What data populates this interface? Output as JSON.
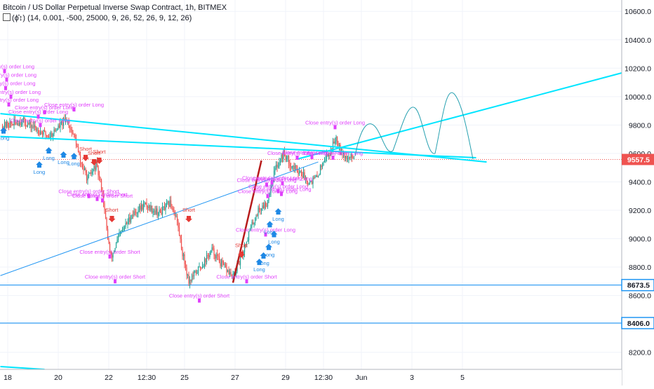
{
  "header": {
    "title": "Bitcoin / US Dollar Perpetual Inverse Swap Contract, 1h, BITMEX",
    "indicator_symbol": "(ϕ̂↕)",
    "indicator_params": "(14, 0.001, -500, 25000, 9, 26, 52, 26, 9, 12, 26)"
  },
  "chart_data": {
    "type": "candlestick",
    "title": "Bitcoin / US Dollar Perpetual Inverse Swap Contract, 1h, BITMEX",
    "y_axis": {
      "ylim": [
        8080,
        10680
      ],
      "ticks": [
        8200,
        8400,
        8600,
        8800,
        9000,
        9200,
        9400,
        9600,
        9800,
        10000,
        10200,
        10400,
        10600
      ],
      "tick_labels": [
        "8200.0",
        "8400.0",
        "8600.0",
        "8800.0",
        "9000.0",
        "9200.0",
        "9400.0",
        "9600.0",
        "9800.0",
        "10000.0",
        "10200.0",
        "10400.0",
        "10600.0"
      ],
      "position": "right"
    },
    "x_axis": {
      "xlim": [
        0,
        432
      ],
      "ticks": [
        0,
        48,
        72,
        96,
        120,
        144,
        168,
        192,
        216,
        240,
        264,
        288,
        312,
        336,
        360,
        384
      ],
      "tick_labels": [
        "18",
        "20",
        "22",
        "12:30",
        "25",
        "27",
        "29",
        "12:30",
        "Jun",
        "3",
        "5"
      ],
      "tick_positions_hours": [
        5,
        53,
        101,
        137,
        173,
        221,
        269,
        305,
        341,
        389,
        437
      ]
    },
    "current_price": {
      "value": 9557.5,
      "label": "9557.5",
      "color": "#ef5350"
    },
    "horizontal_levels": [
      {
        "value": 8673.5,
        "label": "8673.5",
        "color": "#2196f3"
      },
      {
        "value": 8406.0,
        "label": "8406.0",
        "color": "#2196f3"
      }
    ],
    "colors": {
      "up": "#26a69a",
      "down": "#ef5350",
      "trendline": "#00e5ff",
      "trendline_thin": "#2196f3",
      "signal": "#e040fb",
      "sell_line": "#b71c1c"
    },
    "key_points": [
      {
        "x": 0,
        "y": 9790
      },
      {
        "x": 20,
        "y": 9830
      },
      {
        "x": 45,
        "y": 9720
      },
      {
        "x": 62,
        "y": 9840
      },
      {
        "x": 70,
        "y": 9700
      },
      {
        "x": 75,
        "y": 9540
      },
      {
        "x": 82,
        "y": 9420
      },
      {
        "x": 90,
        "y": 9520
      },
      {
        "x": 96,
        "y": 9330
      },
      {
        "x": 100,
        "y": 9060
      },
      {
        "x": 104,
        "y": 8860
      },
      {
        "x": 112,
        "y": 9020
      },
      {
        "x": 124,
        "y": 9170
      },
      {
        "x": 136,
        "y": 9240
      },
      {
        "x": 150,
        "y": 9180
      },
      {
        "x": 160,
        "y": 9250
      },
      {
        "x": 166,
        "y": 9160
      },
      {
        "x": 172,
        "y": 8900
      },
      {
        "x": 178,
        "y": 8700
      },
      {
        "x": 190,
        "y": 8810
      },
      {
        "x": 200,
        "y": 8920
      },
      {
        "x": 210,
        "y": 8810
      },
      {
        "x": 220,
        "y": 8730
      },
      {
        "x": 228,
        "y": 8870
      },
      {
        "x": 236,
        "y": 9060
      },
      {
        "x": 244,
        "y": 9200
      },
      {
        "x": 252,
        "y": 9250
      },
      {
        "x": 260,
        "y": 9490
      },
      {
        "x": 268,
        "y": 9600
      },
      {
        "x": 276,
        "y": 9510
      },
      {
        "x": 284,
        "y": 9470
      },
      {
        "x": 292,
        "y": 9400
      },
      {
        "x": 300,
        "y": 9430
      },
      {
        "x": 306,
        "y": 9560
      },
      {
        "x": 312,
        "y": 9600
      },
      {
        "x": 318,
        "y": 9720
      },
      {
        "x": 322,
        "y": 9640
      },
      {
        "x": 328,
        "y": 9560
      },
      {
        "x": 334,
        "y": 9580
      }
    ],
    "signals": [
      {
        "text": "Close entry(s) order Long",
        "type": "close-long",
        "hour": 2,
        "price": 10180
      },
      {
        "text": "Close entry(s) order Long",
        "type": "close-long",
        "hour": 4,
        "price": 10120
      },
      {
        "text": "Close entry(s) order Long",
        "type": "close-long",
        "hour": 3,
        "price": 10060
      },
      {
        "text": "Close entry(s) order Long",
        "type": "close-long",
        "hour": 8,
        "price": 10000
      },
      {
        "text": "Close entry(s) order Long",
        "type": "close-long",
        "hour": 6,
        "price": 9945
      },
      {
        "text": "Close entry(s) order Long",
        "type": "close-long",
        "hour": 40,
        "price": 9890
      },
      {
        "text": "Close entry(s) order Long",
        "type": "close-long",
        "hour": 34,
        "price": 9860
      },
      {
        "text": "Close entry(s) order Long",
        "type": "close-long",
        "hour": 68,
        "price": 9910
      },
      {
        "text": "Close entry(s) order Long",
        "type": "close-long",
        "hour": 36,
        "price": 9800
      },
      {
        "text": "Long",
        "type": "long",
        "hour": 1,
        "price": 9720
      },
      {
        "text": "Long",
        "type": "long",
        "hour": 35,
        "price": 9480
      },
      {
        "text": "Long",
        "type": "long",
        "hour": 44,
        "price": 9580
      },
      {
        "text": "Long",
        "type": "long",
        "hour": 58,
        "price": 9550
      },
      {
        "text": "Long",
        "type": "long",
        "hour": 68,
        "price": 9540
      },
      {
        "text": "Short",
        "type": "short",
        "hour": 79,
        "price": 9610
      },
      {
        "text": "Short",
        "type": "short",
        "hour": 87,
        "price": 9580
      },
      {
        "text": "Short",
        "type": "short",
        "hour": 92,
        "price": 9590
      },
      {
        "text": "Close entry(s) order Short",
        "type": "close-short",
        "hour": 82,
        "price": 9300
      },
      {
        "text": "Close entry(s) order Short",
        "type": "close-short",
        "hour": 95,
        "price": 9270
      },
      {
        "text": "Close entry(s) order Short",
        "type": "close-short",
        "hour": 90,
        "price": 9280
      },
      {
        "text": "Short",
        "type": "short",
        "hour": 104,
        "price": 9180
      },
      {
        "text": "Close entry(s) order Short",
        "type": "close-short",
        "hour": 102,
        "price": 8875
      },
      {
        "text": "Close entry(s) order Short",
        "type": "close-short",
        "hour": 107,
        "price": 8700
      },
      {
        "text": "Short",
        "type": "short",
        "hour": 177,
        "price": 9180
      },
      {
        "text": "Close entry(s) order Short",
        "type": "close-short",
        "hour": 187,
        "price": 8565
      },
      {
        "text": "Short",
        "type": "short",
        "hour": 227,
        "price": 8930
      },
      {
        "text": "Close entry(s) order Short",
        "type": "close-short",
        "hour": 232,
        "price": 8700
      },
      {
        "text": "Close entry(s) order Long",
        "type": "close-long",
        "hour": 250,
        "price": 9030
      },
      {
        "text": "Close entry(s) order Long",
        "type": "close-long",
        "hour": 251,
        "price": 9380
      },
      {
        "text": "Close entry(s) order Long",
        "type": "close-long",
        "hour": 256,
        "price": 9395
      },
      {
        "text": "Close entry(s) order Long",
        "type": "close-long",
        "hour": 262,
        "price": 9335
      },
      {
        "text": "Close entry(s) order Long",
        "type": "close-long",
        "hour": 265,
        "price": 9315
      },
      {
        "text": "Close entry(s) order Long",
        "type": "close-long",
        "hour": 252,
        "price": 9300
      },
      {
        "text": "Close entry(s) order Long",
        "type": "close-long",
        "hour": 266,
        "price": 9390
      },
      {
        "text": "Close entry(s) order Long",
        "type": "close-long",
        "hour": 280,
        "price": 9570
      },
      {
        "text": "Close entry(s) order Long",
        "type": "close-long",
        "hour": 294,
        "price": 9575
      },
      {
        "text": "Close entry(s) order Long",
        "type": "close-long",
        "hour": 314,
        "price": 9570
      },
      {
        "text": "Close entry(s) order Long",
        "type": "close-long",
        "hour": 316,
        "price": 9785
      },
      {
        "text": "Long",
        "type": "long",
        "hour": 244,
        "price": 8795
      },
      {
        "text": "Long",
        "type": "long",
        "hour": 248,
        "price": 8840
      },
      {
        "text": "Long",
        "type": "long",
        "hour": 253,
        "price": 8900
      },
      {
        "text": "Long",
        "type": "long",
        "hour": 258,
        "price": 8990
      },
      {
        "text": "Long",
        "type": "long",
        "hour": 254,
        "price": 9060
      },
      {
        "text": "Long",
        "type": "long",
        "hour": 262,
        "price": 9150
      }
    ],
    "grid": true
  }
}
